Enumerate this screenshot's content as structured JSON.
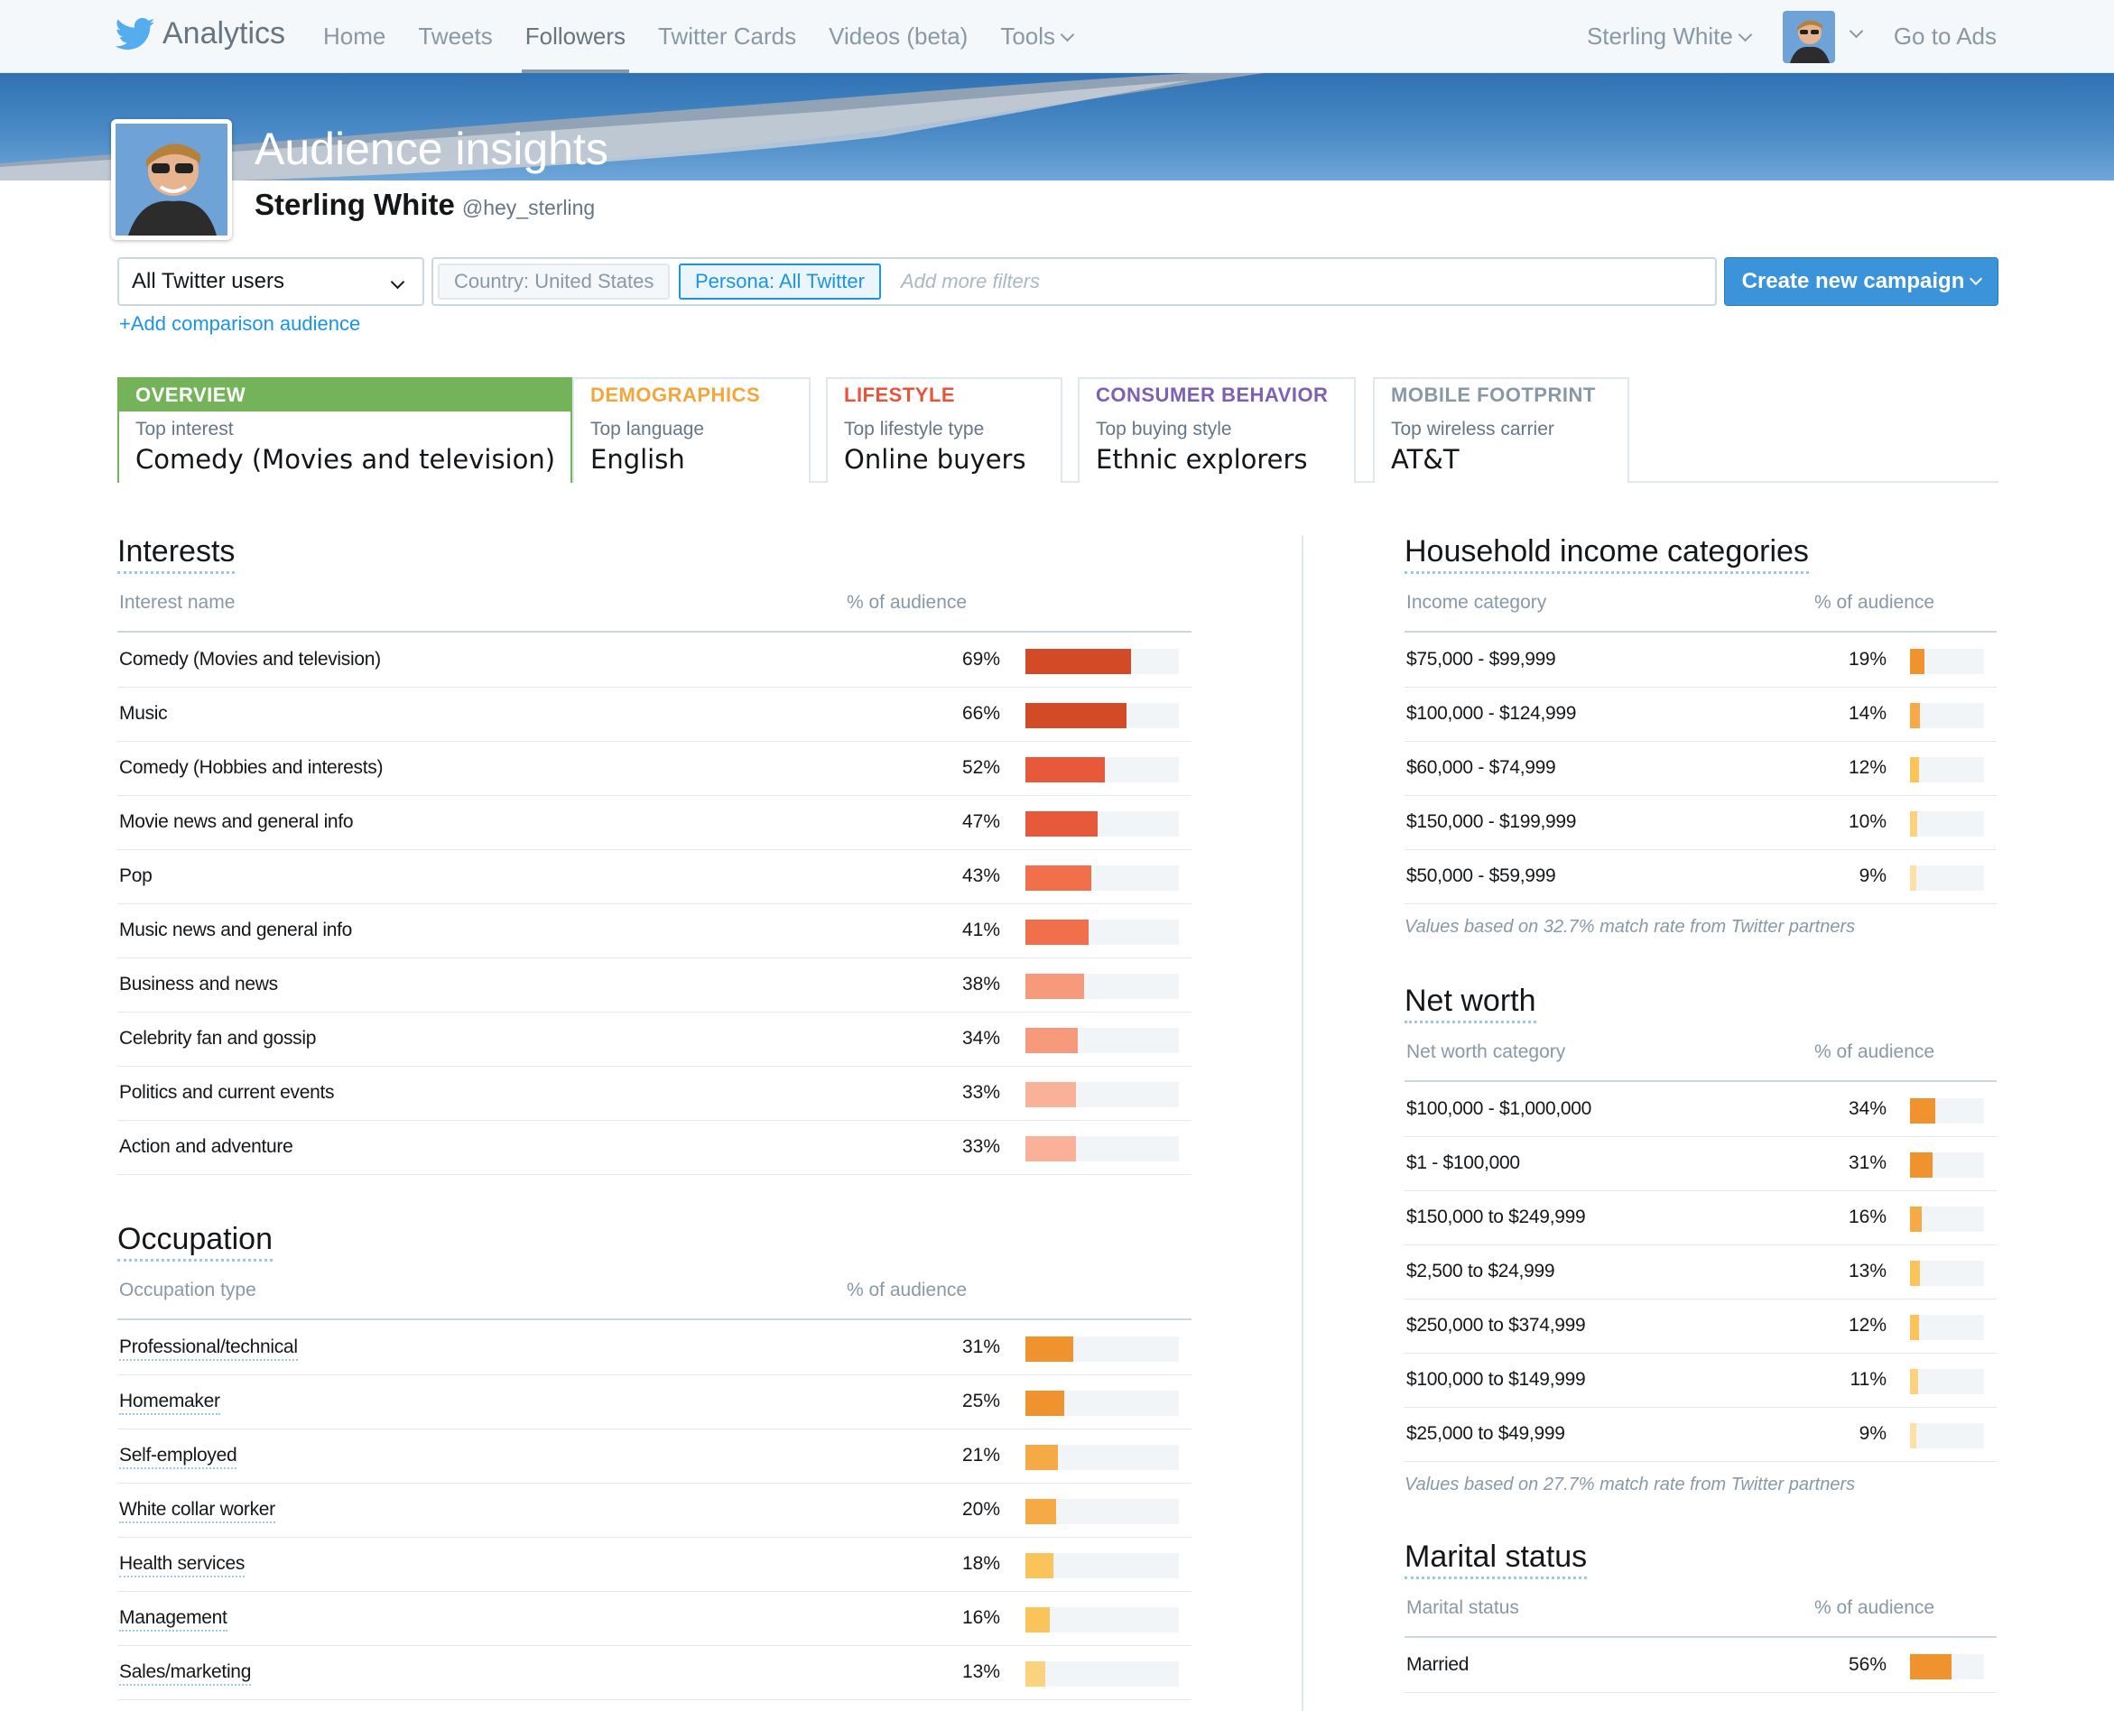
{
  "nav": {
    "brand": "Analytics",
    "items": [
      "Home",
      "Tweets",
      "Followers",
      "Twitter Cards",
      "Videos (beta)",
      "Tools"
    ],
    "active": "Followers",
    "user": "Sterling White",
    "go_to_ads": "Go to Ads"
  },
  "header": {
    "title": "Audience insights",
    "name": "Sterling White",
    "handle": "@hey_sterling"
  },
  "filters": {
    "audience": "All Twitter users",
    "add_comparison": "+Add comparison audience",
    "country_chip": "Country: United States",
    "persona_chip": "Persona: All Twitter",
    "placeholder": "Add more filters",
    "create_button": "Create new campaign"
  },
  "tabs": [
    {
      "head": "OVERVIEW",
      "sub": "Top interest",
      "value": "Comedy (Movies and television)",
      "color": "#74b35a"
    },
    {
      "head": "DEMOGRAPHICS",
      "sub": "Top language",
      "value": "English",
      "color": "#f4a63b"
    },
    {
      "head": "LIFESTYLE",
      "sub": "Top lifestyle type",
      "value": "Online buyers",
      "color": "#e8543a"
    },
    {
      "head": "CONSUMER BEHAVIOR",
      "sub": "Top buying style",
      "value": "Ethnic explorers",
      "color": "#7e5fb1"
    },
    {
      "head": "MOBILE FOOTPRINT",
      "sub": "Top wireless carrier",
      "value": "AT&T",
      "color": "#8899a6"
    }
  ],
  "interests": {
    "title": "Interests",
    "col_name": "Interest name",
    "col_pct": "% of audience",
    "rows": [
      {
        "label": "Comedy (Movies and television)",
        "pct": "69%",
        "value": 69,
        "color": "#d24b26"
      },
      {
        "label": "Music",
        "pct": "66%",
        "value": 66,
        "color": "#d24b26"
      },
      {
        "label": "Comedy (Hobbies and interests)",
        "pct": "52%",
        "value": 52,
        "color": "#e8583a"
      },
      {
        "label": "Movie news and general info",
        "pct": "47%",
        "value": 47,
        "color": "#e8583a"
      },
      {
        "label": "Pop",
        "pct": "43%",
        "value": 43,
        "color": "#f26f4c"
      },
      {
        "label": "Music news and general info",
        "pct": "41%",
        "value": 41,
        "color": "#f26f4c"
      },
      {
        "label": "Business and news",
        "pct": "38%",
        "value": 38,
        "color": "#f79a7c"
      },
      {
        "label": "Celebrity fan and gossip",
        "pct": "34%",
        "value": 34,
        "color": "#f79a7c"
      },
      {
        "label": "Politics and current events",
        "pct": "33%",
        "value": 33,
        "color": "#fab19a"
      },
      {
        "label": "Action and adventure",
        "pct": "33%",
        "value": 33,
        "color": "#fab19a"
      }
    ]
  },
  "occupation": {
    "title": "Occupation",
    "col_name": "Occupation type",
    "col_pct": "% of audience",
    "rows": [
      {
        "label": "Professional/technical",
        "pct": "31%",
        "value": 31,
        "color": "#f0922e"
      },
      {
        "label": "Homemaker",
        "pct": "25%",
        "value": 25,
        "color": "#f0922e"
      },
      {
        "label": "Self-employed",
        "pct": "21%",
        "value": 21,
        "color": "#f6aa45"
      },
      {
        "label": "White collar worker",
        "pct": "20%",
        "value": 20,
        "color": "#f6aa45"
      },
      {
        "label": "Health services",
        "pct": "18%",
        "value": 18,
        "color": "#fbc45b"
      },
      {
        "label": "Management",
        "pct": "16%",
        "value": 16,
        "color": "#fbc45b"
      },
      {
        "label": "Sales/marketing",
        "pct": "13%",
        "value": 13,
        "color": "#fcd27f"
      }
    ]
  },
  "income": {
    "title": "Household income categories",
    "col_name": "Income category",
    "col_pct": "% of audience",
    "note": "Values based on 32.7% match rate from Twitter partners",
    "rows": [
      {
        "label": "$75,000 - $99,999",
        "pct": "19%",
        "value": 19,
        "color": "#f0922e"
      },
      {
        "label": "$100,000 - $124,999",
        "pct": "14%",
        "value": 14,
        "color": "#f6aa45"
      },
      {
        "label": "$60,000 - $74,999",
        "pct": "12%",
        "value": 12,
        "color": "#fbc45b"
      },
      {
        "label": "$150,000 - $199,999",
        "pct": "10%",
        "value": 10,
        "color": "#fcd27f"
      },
      {
        "label": "$50,000 - $59,999",
        "pct": "9%",
        "value": 9,
        "color": "#fde0a8"
      }
    ]
  },
  "networth": {
    "title": "Net worth",
    "col_name": "Net worth category",
    "col_pct": "% of audience",
    "note": "Values based on 27.7% match rate from Twitter partners",
    "rows": [
      {
        "label": "$100,000 - $1,000,000",
        "pct": "34%",
        "value": 34,
        "color": "#f0922e"
      },
      {
        "label": "$1 - $100,000",
        "pct": "31%",
        "value": 31,
        "color": "#f0922e"
      },
      {
        "label": "$150,000 to $249,999",
        "pct": "16%",
        "value": 16,
        "color": "#f6aa45"
      },
      {
        "label": "$2,500 to $24,999",
        "pct": "13%",
        "value": 13,
        "color": "#fbc45b"
      },
      {
        "label": "$250,000 to $374,999",
        "pct": "12%",
        "value": 12,
        "color": "#fbc45b"
      },
      {
        "label": "$100,000 to $149,999",
        "pct": "11%",
        "value": 11,
        "color": "#fcd27f"
      },
      {
        "label": "$25,000 to $49,999",
        "pct": "9%",
        "value": 9,
        "color": "#fde0a8"
      }
    ]
  },
  "marital": {
    "title": "Marital status",
    "col_name": "Marital status",
    "col_pct": "% of audience",
    "rows": [
      {
        "label": "Married",
        "pct": "56%",
        "value": 56,
        "color": "#f0922e"
      }
    ]
  }
}
